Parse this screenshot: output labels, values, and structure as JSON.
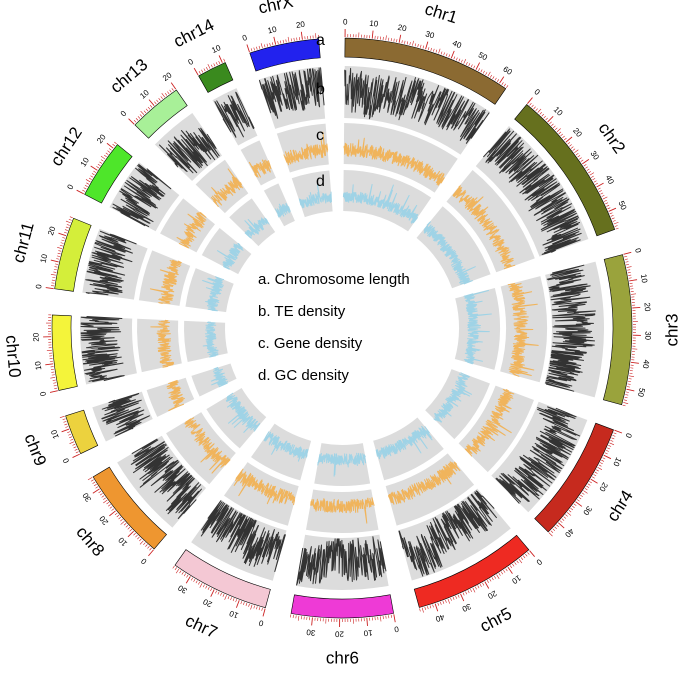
{
  "track_letters": [
    "a",
    "b",
    "c",
    "d"
  ],
  "legend": [
    "a. Chromosome length",
    "b. TE density",
    "c. Gene density",
    "d. GC density"
  ],
  "colors": {
    "te_line": "#333333",
    "gene_line": "#f0b45c",
    "gc_line": "#9fd3e6",
    "track_bg": "#dcdcdc",
    "tick": "#cc2222"
  },
  "chromosomes": [
    {
      "name": "chr1",
      "length": 63,
      "color": "#8b6a32"
    },
    {
      "name": "chr2",
      "length": 57,
      "color": "#66701e"
    },
    {
      "name": "chr3",
      "length": 56,
      "color": "#9aa33c"
    },
    {
      "name": "chr4",
      "length": 45,
      "color": "#c62a1e"
    },
    {
      "name": "chr5",
      "length": 46,
      "color": "#ee2a22"
    },
    {
      "name": "chr6",
      "length": 38,
      "color": "#ee3ad6"
    },
    {
      "name": "chr7",
      "length": 37,
      "color": "#f4c8d4"
    },
    {
      "name": "chr8",
      "length": 35,
      "color": "#ee9630"
    },
    {
      "name": "chr9",
      "length": 15,
      "color": "#ecd23e"
    },
    {
      "name": "chr10",
      "length": 28,
      "color": "#f4f43a"
    },
    {
      "name": "chr11",
      "length": 27,
      "color": "#d4ee3a"
    },
    {
      "name": "chr12",
      "length": 22,
      "color": "#4ee62a"
    },
    {
      "name": "chr13",
      "length": 20,
      "color": "#a8f098"
    },
    {
      "name": "chr14",
      "length": 11,
      "color": "#3a8a1e"
    },
    {
      "name": "chrX",
      "length": 26,
      "color": "#2222ee"
    }
  ]
}
